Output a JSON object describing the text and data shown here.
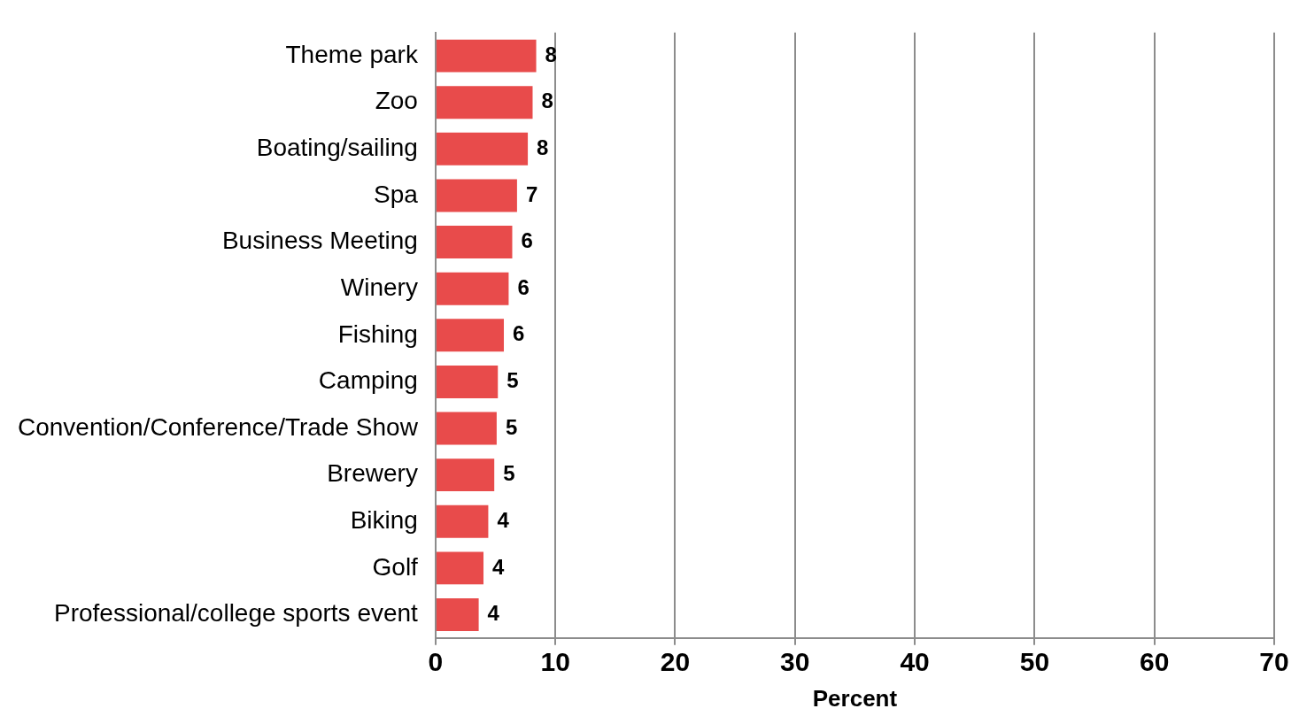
{
  "chart_data": {
    "type": "bar",
    "orientation": "horizontal",
    "xlabel": "Percent",
    "categories": [
      "Theme park",
      "Zoo",
      "Boating/sailing",
      "Spa",
      "Business Meeting",
      "Winery",
      "Fishing",
      "Camping",
      "Convention/Conference/Trade Show",
      "Brewery",
      "Biking",
      "Golf",
      "Professional/college sports event"
    ],
    "values": [
      8.4,
      8.1,
      7.7,
      6.8,
      6.4,
      6.1,
      5.7,
      5.2,
      5.1,
      4.9,
      4.4,
      4.0,
      3.6
    ],
    "value_labels": [
      "8",
      "8",
      "8",
      "7",
      "6",
      "6",
      "6",
      "5",
      "5",
      "5",
      "4",
      "4",
      "4"
    ],
    "color": "#e84b4b",
    "xlim": [
      0,
      70
    ],
    "xticks": [
      0,
      10,
      20,
      30,
      40,
      50,
      60,
      70
    ],
    "grid": "x",
    "legend": false
  }
}
